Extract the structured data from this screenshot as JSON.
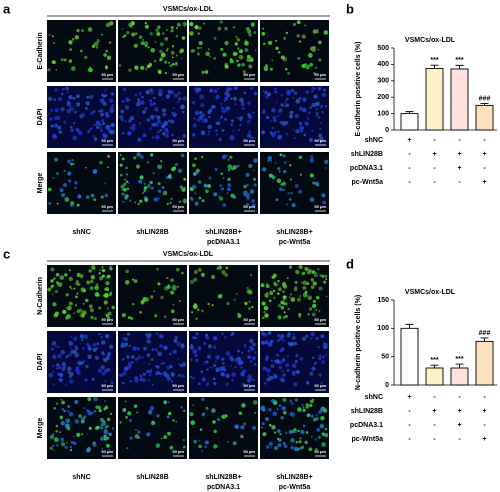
{
  "panels": [
    {
      "label": "a",
      "title": "VSMCs/ox-LDL",
      "scale_bar": "50 μm",
      "rows": [
        "E-Cadherin",
        "DAPI",
        "Merge"
      ],
      "columns": [
        [
          "shNC"
        ],
        [
          "shLIN28B"
        ],
        [
          "shLIN28B+",
          "pcDNA3.1"
        ],
        [
          "shLIN28B+",
          "pc-Wnt5a"
        ]
      ]
    },
    {
      "label": "c",
      "title": "VSMCs/ox-LDL",
      "scale_bar": "50 μm",
      "rows": [
        "N-Cadherin",
        "DAPI",
        "Merge"
      ],
      "columns": [
        [
          "shNC"
        ],
        [
          "shLIN28B"
        ],
        [
          "shLIN28B+",
          "pcDNA3.1"
        ],
        [
          "shLIN28B+",
          "pc-Wnt5a"
        ]
      ]
    }
  ],
  "chart_data": [
    {
      "type": "bar",
      "label": "b",
      "title": "VSMCs/ox-LDL",
      "ylabel": "E-cadherin positive cells (%)",
      "values": [
        100,
        375,
        372,
        150
      ],
      "errors": [
        12,
        20,
        22,
        12
      ],
      "colors": [
        "#ffffff",
        "#fdf0c6",
        "#fde1df",
        "#fbe2bd"
      ],
      "markers": [
        null,
        "***",
        "***",
        "###"
      ],
      "ylim": [
        0,
        500
      ],
      "yticks": [
        0,
        100,
        200,
        300,
        400,
        500
      ],
      "groups": [
        {
          "name": "shNC",
          "signs": [
            "+",
            "-",
            "-",
            "-"
          ]
        },
        {
          "name": "shLIN28B",
          "signs": [
            "-",
            "+",
            "+",
            "+"
          ]
        },
        {
          "name": "pcDNA3.1",
          "signs": [
            "-",
            "-",
            "+",
            "-"
          ]
        },
        {
          "name": "pc-Wnt5a",
          "signs": [
            "-",
            "-",
            "-",
            "+"
          ]
        }
      ]
    },
    {
      "type": "bar",
      "label": "d",
      "title": "VSMCs/ox-LDL",
      "ylabel": "N-cadherin positive cells (%)",
      "values": [
        100,
        30,
        30,
        77
      ],
      "errors": [
        7,
        5,
        7,
        6
      ],
      "colors": [
        "#ffffff",
        "#fdf0c6",
        "#fde1df",
        "#fbe2bd"
      ],
      "markers": [
        null,
        "***",
        "***",
        "###"
      ],
      "ylim": [
        0,
        150
      ],
      "yticks": [
        0,
        50,
        100,
        150
      ],
      "groups": [
        {
          "name": "shNC",
          "signs": [
            "+",
            "-",
            "-",
            "-"
          ]
        },
        {
          "name": "shLIN28B",
          "signs": [
            "-",
            "+",
            "+",
            "+"
          ]
        },
        {
          "name": "pcDNA3.1",
          "signs": [
            "-",
            "-",
            "+",
            "-"
          ]
        },
        {
          "name": "pc-Wnt5a",
          "signs": [
            "-",
            "-",
            "-",
            "+"
          ]
        }
      ]
    }
  ]
}
